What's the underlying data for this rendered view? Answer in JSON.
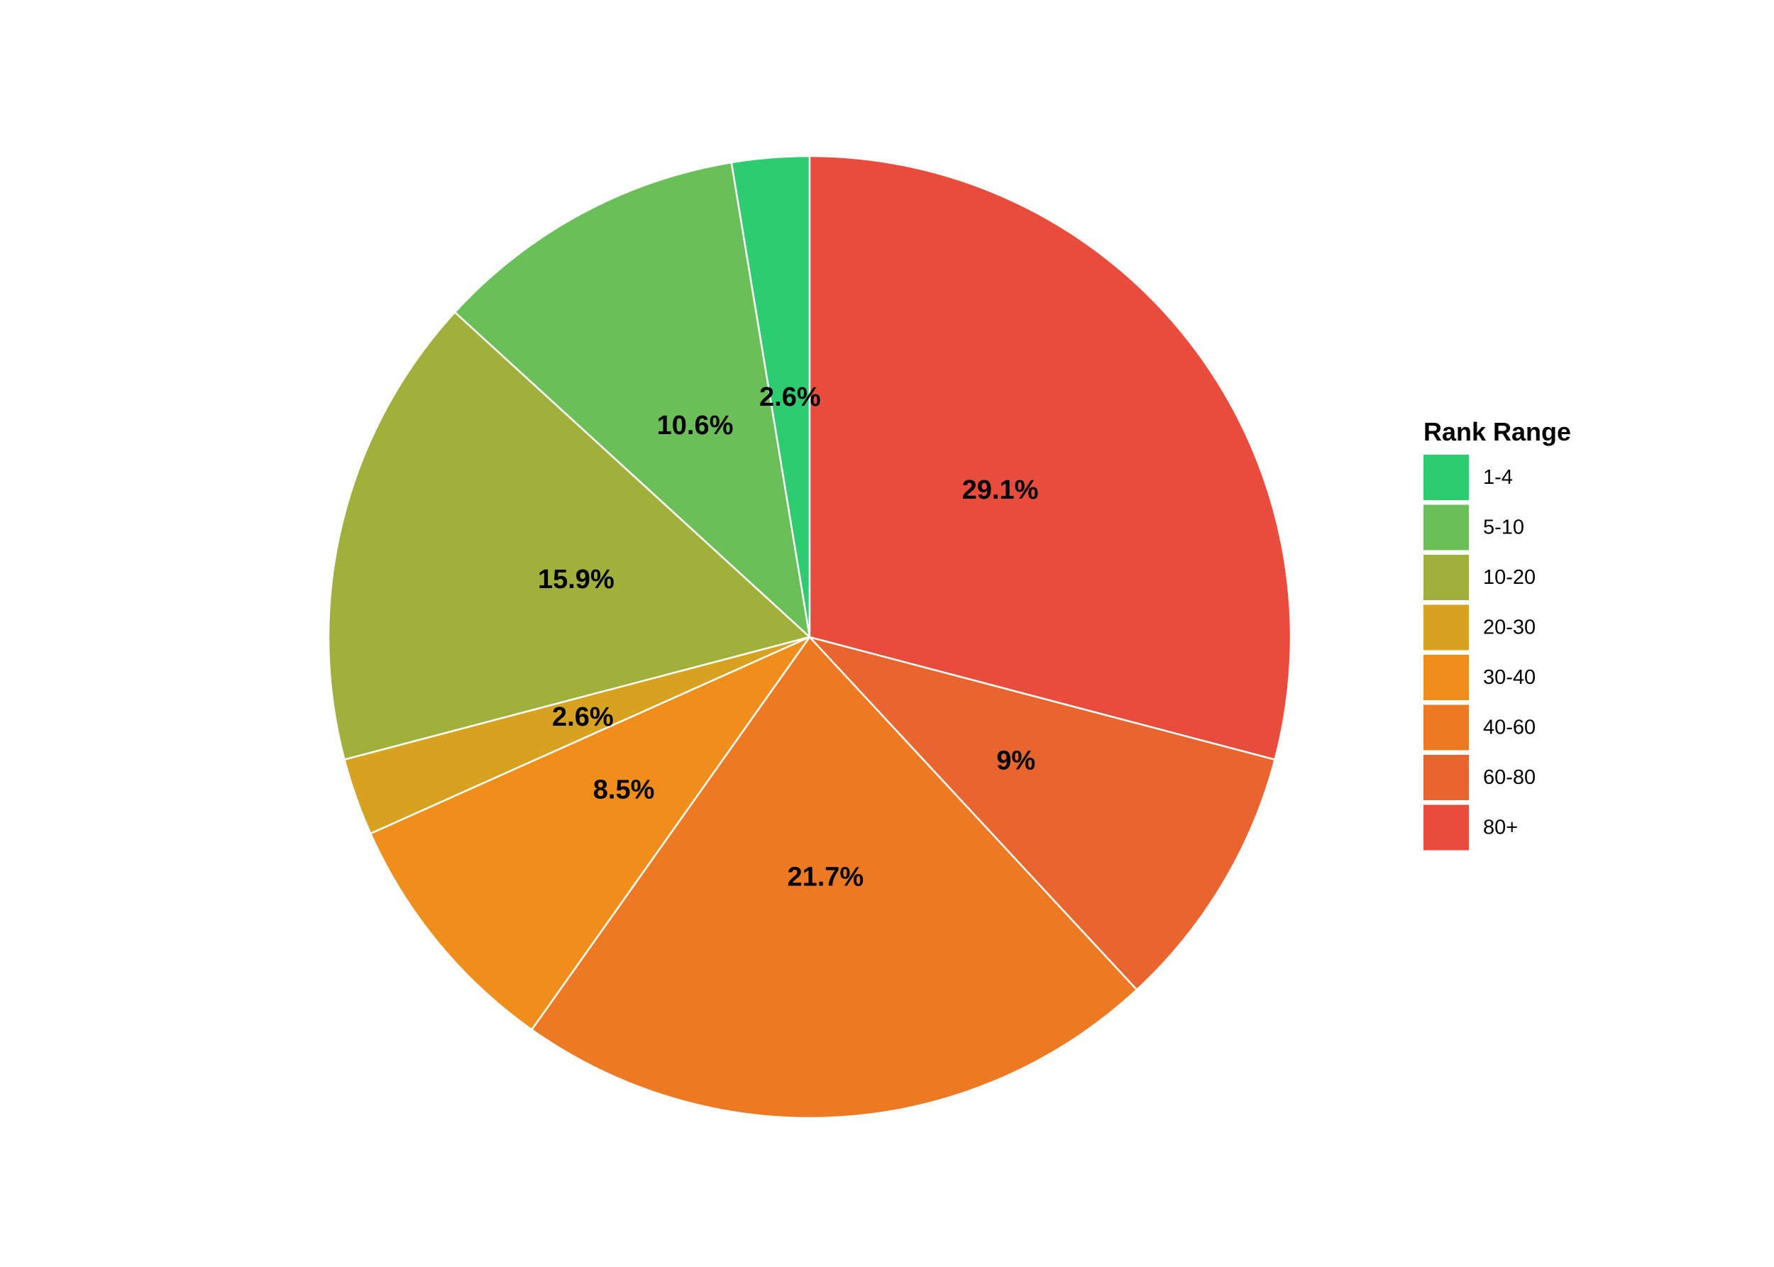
{
  "chart_data": {
    "type": "pie",
    "title": "",
    "legend_title": "Rank Range",
    "legend_position": "right",
    "start": "top",
    "direction": "clockwise-from-last",
    "categories": [
      "1-4",
      "5-10",
      "10-20",
      "20-30",
      "30-40",
      "40-60",
      "60-80",
      "80+"
    ],
    "values": [
      2.6,
      10.6,
      15.9,
      2.6,
      8.5,
      21.7,
      9.0,
      29.1
    ],
    "labels": [
      "2.6%",
      "10.6%",
      "15.9%",
      "2.6%",
      "8.5%",
      "21.7%",
      "9%",
      "29.1%"
    ],
    "colors": [
      "#2ecc71",
      "#6abf58",
      "#a0b03b",
      "#d6a21f",
      "#f08e1b",
      "#ed7a23",
      "#e96530",
      "#e74c3c"
    ]
  }
}
